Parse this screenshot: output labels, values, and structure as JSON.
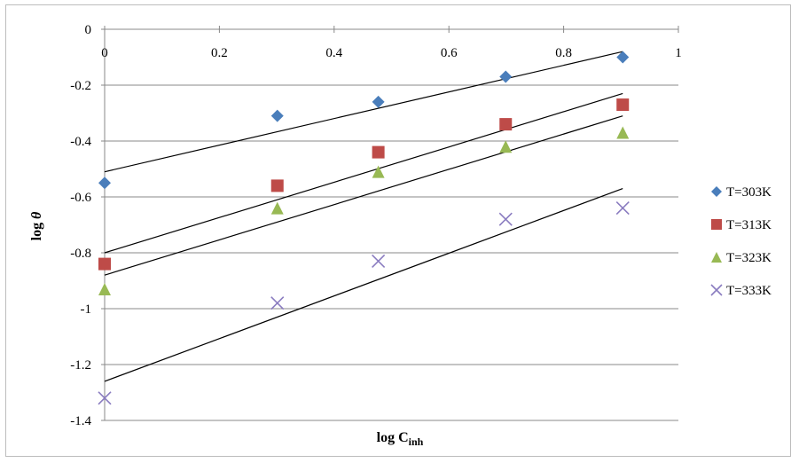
{
  "chart_data": {
    "type": "scatter",
    "xlabel_main": "log C",
    "xlabel_sub": "inh",
    "ylabel_main": "log",
    "ylabel_symbol": "θ",
    "xlim": [
      0,
      1
    ],
    "ylim": [
      -1.4,
      0
    ],
    "x_ticks": [
      "0",
      "0.2",
      "0.4",
      "0.6",
      "0.8",
      "1"
    ],
    "y_ticks": [
      "0",
      "-0.2",
      "-0.4",
      "-0.6",
      "-0.8",
      "-1",
      "-1.2",
      "-1.4"
    ],
    "grid": "horizontal",
    "legend_position": "right",
    "x": [
      0,
      0.301,
      0.477,
      0.699,
      0.903
    ],
    "series": [
      {
        "name": "T=303K",
        "marker": "diamond",
        "color": "#4a7ebb",
        "values": [
          -0.55,
          -0.31,
          -0.26,
          -0.17,
          -0.1
        ],
        "fit": {
          "x": [
            0,
            0.903
          ],
          "y": [
            -0.51,
            -0.08
          ]
        }
      },
      {
        "name": "T=313K",
        "marker": "square",
        "color": "#be4b48",
        "values": [
          -0.84,
          -0.56,
          -0.44,
          -0.34,
          -0.27
        ],
        "fit": {
          "x": [
            0,
            0.903
          ],
          "y": [
            -0.8,
            -0.23
          ]
        }
      },
      {
        "name": "T=323K",
        "marker": "triangle",
        "color": "#98b954",
        "values": [
          -0.93,
          -0.64,
          -0.51,
          -0.42,
          -0.37
        ],
        "fit": {
          "x": [
            0,
            0.903
          ],
          "y": [
            -0.88,
            -0.31
          ]
        }
      },
      {
        "name": "T=333K",
        "marker": "x",
        "color": "#8a7cc0",
        "values": [
          -1.32,
          -0.98,
          -0.83,
          -0.68,
          -0.64
        ],
        "fit": {
          "x": [
            0,
            0.903
          ],
          "y": [
            -1.26,
            -0.57
          ]
        }
      }
    ]
  }
}
